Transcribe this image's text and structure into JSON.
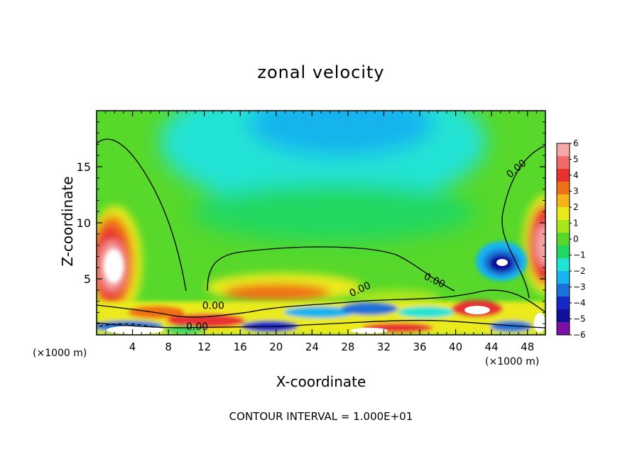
{
  "chart_data": {
    "type": "heatmap",
    "title": "zonal velocity",
    "xlabel": "X-coordinate",
    "ylabel": "Z-coordinate",
    "x_unit_left": "(×1000 m)",
    "x_unit_right": "(×1000 m)",
    "xlim": [
      0,
      50
    ],
    "ylim": [
      0,
      20
    ],
    "x_ticks": [
      4,
      8,
      12,
      16,
      20,
      24,
      28,
      32,
      36,
      40,
      44,
      48
    ],
    "y_ticks": [
      5,
      10,
      15
    ],
    "colorbar": {
      "min": -6,
      "max": 6,
      "ticks": [
        6,
        5,
        4,
        3,
        2,
        1,
        0,
        -1,
        -2,
        -3,
        -4,
        -5,
        -6
      ],
      "tick_labels": [
        "6",
        "5",
        "4",
        "3",
        "2",
        "1",
        "0",
        "−1",
        "−2",
        "−3",
        "−4",
        "−5",
        "−6"
      ],
      "colors": [
        "#f5a8a8",
        "#f06a6a",
        "#e83232",
        "#f07018",
        "#f7b319",
        "#eaea1b",
        "#a9e61c",
        "#57d82a",
        "#20d860",
        "#20e3d4",
        "#19b4ee",
        "#1a72d8",
        "#1428c8",
        "#10109a",
        "#7a10a8"
      ]
    },
    "contour_labels": [
      "0.00",
      "0.00",
      "0.00",
      "0.00",
      "0.00"
    ],
    "contour_interval_text": "CONTOUR INTERVAL = 1.000E+01"
  }
}
